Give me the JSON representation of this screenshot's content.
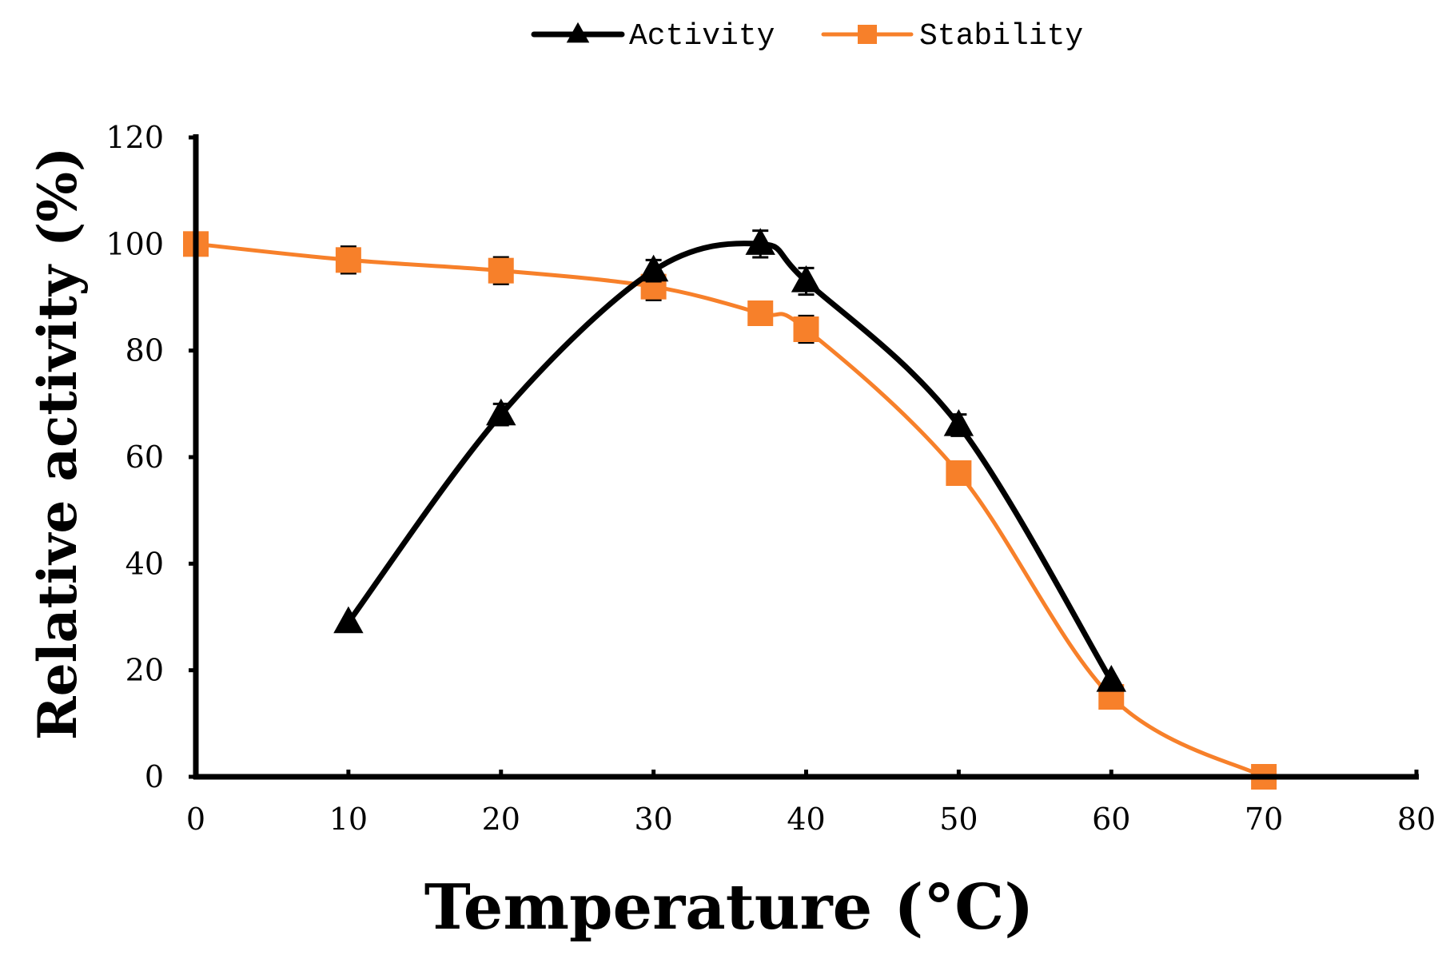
{
  "chart_data": {
    "type": "line",
    "title": "",
    "xlabel": "Temperature (°C)",
    "ylabel": "Relative activity (%)",
    "xlim": [
      0,
      80
    ],
    "ylim": [
      0,
      120
    ],
    "x_ticks": [
      0,
      10,
      20,
      30,
      40,
      50,
      60,
      70,
      80
    ],
    "x_tick_labels": [
      "0",
      "10",
      "20",
      "30",
      "40",
      "50",
      "60",
      "70",
      "80"
    ],
    "y_ticks": [
      0,
      20,
      40,
      60,
      80,
      100,
      120
    ],
    "y_tick_labels": [
      "0",
      "20",
      "40",
      "60",
      "80",
      "100",
      "120"
    ],
    "grid": false,
    "legend_position": "top-center",
    "smooth": true,
    "series": [
      {
        "name": "Activity",
        "color": "#000000",
        "marker": "triangle",
        "x": [
          10,
          20,
          30,
          37,
          40,
          50,
          60
        ],
        "values": [
          29,
          68,
          95,
          100,
          93,
          66,
          18
        ],
        "errors": [
          0,
          2,
          2,
          2.5,
          2.5,
          2,
          0
        ]
      },
      {
        "name": "Stability",
        "color": "#f7802a",
        "marker": "square",
        "x": [
          0,
          10,
          20,
          30,
          37,
          40,
          50,
          60,
          70
        ],
        "values": [
          100,
          97,
          95,
          92,
          87,
          84,
          57,
          15,
          0
        ],
        "errors": [
          0,
          2.5,
          2.5,
          2.5,
          2,
          2.5,
          0,
          0,
          0
        ]
      }
    ]
  }
}
